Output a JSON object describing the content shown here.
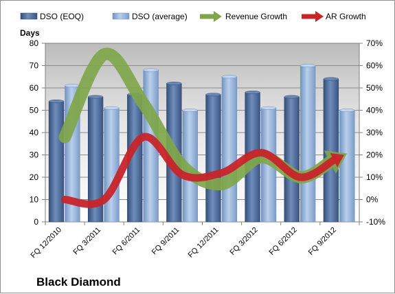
{
  "chart_data": {
    "type": "bar",
    "title": "",
    "caption": "Black Diamond",
    "categories": [
      "FQ 12/2010",
      "FQ 3/2011",
      "FQ 6/2011",
      "FQ 9/2011",
      "FQ 12/2011",
      "FQ 3/2012",
      "FQ 6/2012",
      "FQ 9/2012"
    ],
    "y_left": {
      "label": "Days",
      "min": 0,
      "max": 80,
      "step": 10
    },
    "y_right": {
      "label": "",
      "min": -10,
      "max": 70,
      "step": 10,
      "unit": "%"
    },
    "grid": true,
    "legend_position": "top",
    "series": [
      {
        "name": "DSO (EOQ)",
        "kind": "bar",
        "axis": "left",
        "color": "#4f6d9c",
        "values": [
          54,
          56,
          57,
          62,
          57,
          58,
          56,
          64
        ]
      },
      {
        "name": "DSO (average)",
        "kind": "bar",
        "axis": "left",
        "color": "#9ab7dc",
        "values": [
          61,
          51,
          68,
          50,
          65,
          51,
          70,
          50
        ]
      },
      {
        "name": "Revenue Growth",
        "kind": "line",
        "axis": "right",
        "color": "#7fa64a",
        "values": [
          28,
          65,
          43,
          15,
          7,
          19,
          10,
          19
        ]
      },
      {
        "name": "AR Growth",
        "kind": "line",
        "axis": "right",
        "color": "#c8242a",
        "values": [
          0,
          0,
          28,
          11,
          12,
          21,
          10,
          19
        ]
      }
    ]
  }
}
